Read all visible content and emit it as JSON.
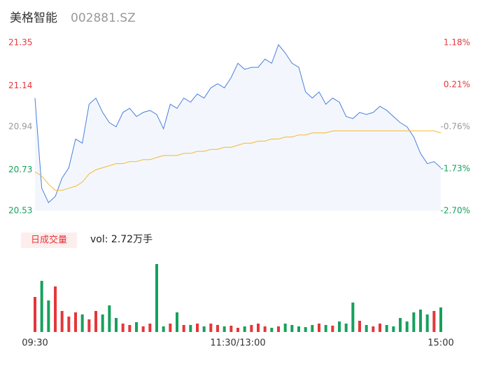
{
  "chart_data": {
    "type": "intraday",
    "title": "美格智能",
    "code": "002881.SZ",
    "volume_label": "日成交量",
    "volume_text": "vol: 2.72万手",
    "x": [
      0,
      4,
      8,
      12,
      16,
      20,
      24,
      28,
      32,
      36,
      40,
      44,
      48,
      52,
      56,
      60,
      64,
      68,
      72,
      76,
      80,
      84,
      88,
      92,
      96,
      100,
      104,
      108,
      112,
      116,
      120,
      124,
      128,
      132,
      136,
      140,
      144,
      148,
      152,
      156,
      160,
      164,
      168,
      172,
      176,
      180,
      184,
      188,
      192,
      196,
      200,
      204,
      208,
      212,
      216,
      220,
      224,
      228,
      232,
      236,
      240
    ],
    "xlim": [
      0,
      240
    ],
    "xticks": [
      {
        "value": 0,
        "label": "09:30"
      },
      {
        "value": 120,
        "label": "11:30/13:00"
      },
      {
        "value": 240,
        "label": "15:00"
      }
    ],
    "ylim": [
      20.53,
      21.35
    ],
    "yticks": [
      20.53,
      20.73,
      20.94,
      21.14,
      21.35
    ],
    "ytick_colors": [
      "#17a05d",
      "#17a05d",
      "#999999",
      "#e5363a",
      "#e5363a"
    ],
    "y2lim": [
      -2.7,
      1.18
    ],
    "y2ticks": [
      {
        "value": -2.7,
        "label": "-2.70%"
      },
      {
        "value": -1.73,
        "label": "-1.73%"
      },
      {
        "value": -0.76,
        "label": "-0.76%"
      },
      {
        "value": 0.21,
        "label": "0.21%"
      },
      {
        "value": 1.18,
        "label": "1.18%"
      }
    ],
    "series": [
      {
        "name": "price",
        "color": "#4a7fdc",
        "values": [
          21.08,
          20.64,
          20.57,
          20.6,
          20.69,
          20.74,
          20.88,
          20.86,
          21.05,
          21.08,
          21.01,
          20.96,
          20.94,
          21.01,
          21.03,
          20.99,
          21.01,
          21.02,
          21.0,
          20.93,
          21.05,
          21.03,
          21.08,
          21.06,
          21.1,
          21.08,
          21.13,
          21.15,
          21.13,
          21.18,
          21.25,
          21.22,
          21.23,
          21.23,
          21.27,
          21.25,
          21.34,
          21.3,
          21.25,
          21.23,
          21.11,
          21.08,
          21.11,
          21.05,
          21.08,
          21.06,
          20.99,
          20.98,
          21.01,
          21.0,
          21.01,
          21.04,
          21.02,
          20.99,
          20.96,
          20.94,
          20.89,
          20.81,
          20.76,
          20.77,
          20.74
        ]
      },
      {
        "name": "average",
        "color": "#f5b731",
        "values": [
          20.72,
          20.7,
          20.66,
          20.63,
          20.63,
          20.64,
          20.65,
          20.67,
          20.71,
          20.73,
          20.74,
          20.75,
          20.76,
          20.76,
          20.77,
          20.77,
          20.78,
          20.78,
          20.79,
          20.8,
          20.8,
          20.8,
          20.81,
          20.81,
          20.82,
          20.82,
          20.83,
          20.83,
          20.84,
          20.84,
          20.85,
          20.86,
          20.86,
          20.87,
          20.87,
          20.88,
          20.88,
          20.89,
          20.89,
          20.9,
          20.9,
          20.91,
          20.91,
          20.91,
          20.92,
          20.92,
          20.92,
          20.92,
          20.92,
          20.92,
          20.92,
          20.92,
          20.92,
          20.92,
          20.92,
          20.92,
          20.92,
          20.92,
          20.92,
          20.92,
          20.91
        ]
      }
    ],
    "volume": [
      50,
      73,
      45,
      65,
      30,
      22,
      28,
      25,
      18,
      30,
      25,
      38,
      20,
      12,
      10,
      14,
      8,
      12,
      97,
      8,
      12,
      28,
      10,
      10,
      12,
      8,
      12,
      10,
      8,
      9,
      6,
      8,
      10,
      12,
      8,
      6,
      8,
      12,
      10,
      8,
      7,
      10,
      12,
      10,
      9,
      15,
      12,
      42,
      16,
      10,
      8,
      12,
      10,
      8,
      20,
      15,
      28,
      32,
      25,
      30,
      35
    ],
    "up_color": "#e5363a",
    "down_color": "#17a05d"
  }
}
